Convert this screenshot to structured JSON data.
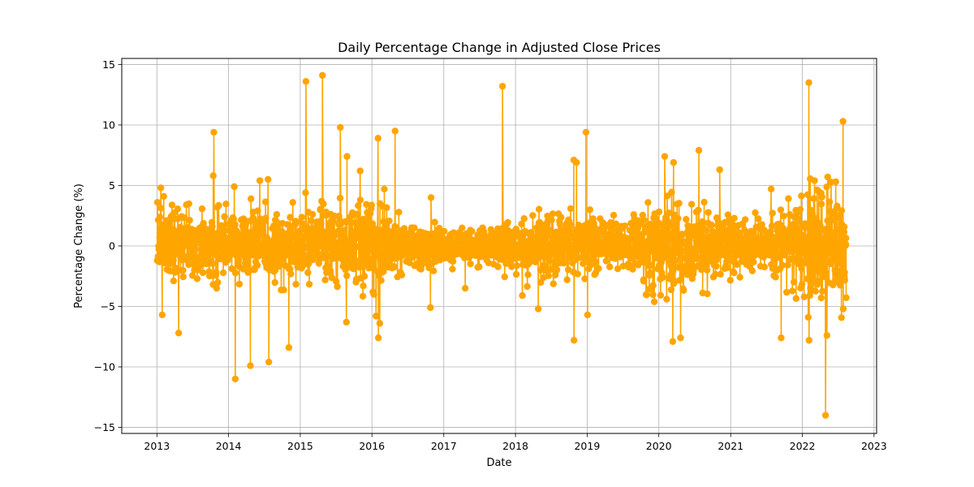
{
  "chart_data": {
    "type": "line",
    "title": "Daily Percentage Change in Adjusted Close Prices",
    "xlabel": "Date",
    "ylabel": "Percentage Change (%)",
    "x_range": [
      "2012-07-06",
      "2023-01-14"
    ],
    "x_data_range": [
      "2013-01-03",
      "2022-08-12"
    ],
    "ylim": [
      -15.5,
      15.5
    ],
    "x_ticks": [
      "2013",
      "2014",
      "2015",
      "2016",
      "2017",
      "2018",
      "2019",
      "2020",
      "2021",
      "2022",
      "2023"
    ],
    "y_ticks": [
      -15,
      -10,
      -5,
      0,
      5,
      10,
      15
    ],
    "y_tick_labels": [
      "−15",
      "−10",
      "−5",
      "0",
      "5",
      "10",
      "15"
    ],
    "grid": true,
    "markers": true,
    "color": "#ffa500",
    "series": [
      {
        "notable_points": [
          {
            "x": "2013-01-05",
            "y": 3.6
          },
          {
            "x": "2013-01-20",
            "y": 4.8
          },
          {
            "x": "2013-01-27",
            "y": -5.7
          },
          {
            "x": "2013-02-05",
            "y": 4.1
          },
          {
            "x": "2013-04-21",
            "y": -7.2
          },
          {
            "x": "2013-06-01",
            "y": 3.4
          },
          {
            "x": "2013-10-18",
            "y": 9.4
          },
          {
            "x": "2013-10-15",
            "y": 5.8
          },
          {
            "x": "2013-11-05",
            "y": 3.2
          },
          {
            "x": "2013-11-02",
            "y": -3.5
          },
          {
            "x": "2014-01-30",
            "y": 4.9
          },
          {
            "x": "2014-02-04",
            "y": -11.0
          },
          {
            "x": "2014-04-22",
            "y": -9.9
          },
          {
            "x": "2014-04-25",
            "y": 3.9
          },
          {
            "x": "2014-06-09",
            "y": 5.4
          },
          {
            "x": "2014-07-21",
            "y": 5.5
          },
          {
            "x": "2014-07-26",
            "y": -9.6
          },
          {
            "x": "2014-11-04",
            "y": -8.4
          },
          {
            "x": "2014-11-24",
            "y": 3.6
          },
          {
            "x": "2015-01-28",
            "y": 4.4
          },
          {
            "x": "2015-01-30",
            "y": 13.6
          },
          {
            "x": "2015-04-24",
            "y": 14.1
          },
          {
            "x": "2015-04-20",
            "y": 3.7
          },
          {
            "x": "2015-07-24",
            "y": 9.8
          },
          {
            "x": "2015-08-27",
            "y": 7.4
          },
          {
            "x": "2015-08-24",
            "y": -6.3
          },
          {
            "x": "2015-11-01",
            "y": 6.2
          },
          {
            "x": "2016-01-22",
            "y": -5.8
          },
          {
            "x": "2016-02-01",
            "y": 8.9
          },
          {
            "x": "2016-02-03",
            "y": -7.6
          },
          {
            "x": "2016-02-10",
            "y": -6.4
          },
          {
            "x": "2016-03-04",
            "y": 4.7
          },
          {
            "x": "2016-04-28",
            "y": 9.5
          },
          {
            "x": "2016-10-25",
            "y": -5.1
          },
          {
            "x": "2016-10-28",
            "y": 4.0
          },
          {
            "x": "2017-04-20",
            "y": -3.5
          },
          {
            "x": "2017-10-27",
            "y": 13.2
          },
          {
            "x": "2018-02-05",
            "y": -4.1
          },
          {
            "x": "2018-04-28",
            "y": -5.2
          },
          {
            "x": "2018-10-25",
            "y": 7.1
          },
          {
            "x": "2018-10-26",
            "y": -7.8
          },
          {
            "x": "2018-11-08",
            "y": 6.9
          },
          {
            "x": "2018-12-26",
            "y": 9.4
          },
          {
            "x": "2019-01-03",
            "y": -5.7
          },
          {
            "x": "2020-01-31",
            "y": 7.4
          },
          {
            "x": "2020-03-12",
            "y": -7.9
          },
          {
            "x": "2020-03-16",
            "y": 6.9
          },
          {
            "x": "2020-04-21",
            "y": -7.6
          },
          {
            "x": "2020-07-23",
            "y": 7.9
          },
          {
            "x": "2020-11-06",
            "y": 6.3
          },
          {
            "x": "2021-07-26",
            "y": 4.7
          },
          {
            "x": "2021-09-15",
            "y": -7.6
          },
          {
            "x": "2022-02-03",
            "y": 13.5
          },
          {
            "x": "2022-01-31",
            "y": -5.9
          },
          {
            "x": "2022-02-05",
            "y": -7.8
          },
          {
            "x": "2022-03-05",
            "y": 5.4
          },
          {
            "x": "2022-04-29",
            "y": -14.0
          },
          {
            "x": "2022-05-10",
            "y": 5.7
          },
          {
            "x": "2022-05-06",
            "y": -7.4
          },
          {
            "x": "2022-06-20",
            "y": 5.3
          },
          {
            "x": "2022-07-27",
            "y": 10.3
          },
          {
            "x": "2022-07-28",
            "y": -5.2
          }
        ],
        "volatility_profile": [
          {
            "x": "2013-01-01",
            "sd": 1.7
          },
          {
            "x": "2013-07-01",
            "sd": 1.3
          },
          {
            "x": "2014-01-01",
            "sd": 1.5
          },
          {
            "x": "2014-07-01",
            "sd": 1.4
          },
          {
            "x": "2015-01-01",
            "sd": 1.4
          },
          {
            "x": "2015-07-01",
            "sd": 1.6
          },
          {
            "x": "2016-01-01",
            "sd": 1.6
          },
          {
            "x": "2016-07-01",
            "sd": 0.9
          },
          {
            "x": "2017-01-01",
            "sd": 0.75
          },
          {
            "x": "2017-07-01",
            "sd": 0.7
          },
          {
            "x": "2018-01-01",
            "sd": 1.3
          },
          {
            "x": "2018-07-01",
            "sd": 1.3
          },
          {
            "x": "2019-01-01",
            "sd": 1.2
          },
          {
            "x": "2019-07-01",
            "sd": 0.9
          },
          {
            "x": "2020-01-01",
            "sd": 1.9
          },
          {
            "x": "2020-07-01",
            "sd": 1.7
          },
          {
            "x": "2021-01-01",
            "sd": 1.2
          },
          {
            "x": "2021-07-01",
            "sd": 1.0
          },
          {
            "x": "2022-01-01",
            "sd": 2.1
          },
          {
            "x": "2022-08-12",
            "sd": 2.3
          }
        ]
      }
    ]
  }
}
